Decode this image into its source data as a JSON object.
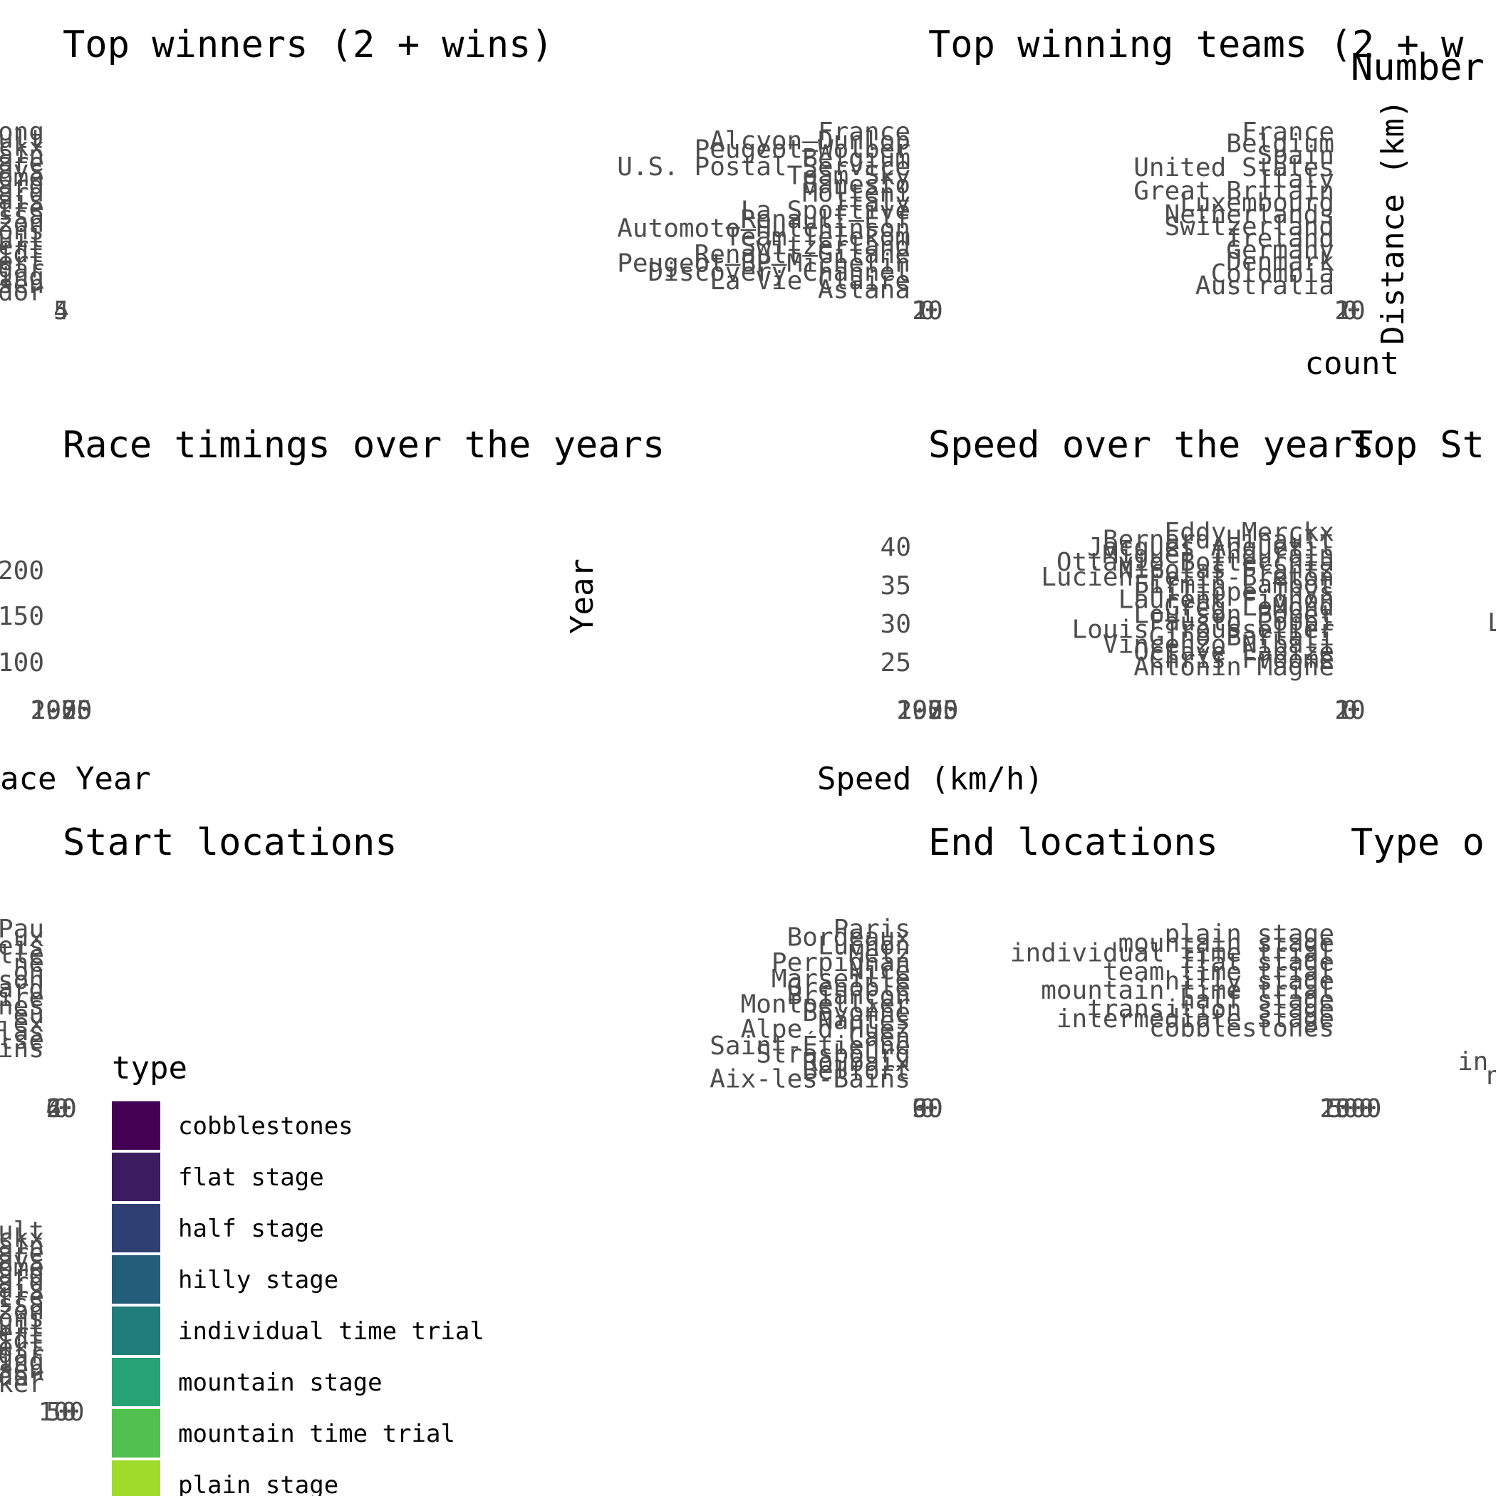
{
  "panels": [
    {
      "title": "Top winners (2 + wins)"
    },
    {
      "title": "Top winning teams (2 + w"
    },
    {
      "title": "Number"
    },
    {
      "title": "Race timings over the years"
    },
    {
      "title": "Speed over the years"
    },
    {
      "title": "Top St"
    },
    {
      "title": "Start locations"
    },
    {
      "title": "End locations"
    },
    {
      "title": "Type o"
    }
  ],
  "axis_labels": {
    "distance_km": "Distance (km)",
    "count": "count",
    "year": "Year",
    "race_year": "ace Year",
    "speed": "Speed (km/h)"
  },
  "chart_data": [
    {
      "type": "bar",
      "title": "Top winners (2 + wins)",
      "categories": [
        "ong",
        "ult",
        "ckx",
        "ain",
        "are",
        "ays",
        "ome",
        "ard",
        "ard",
        "ais",
        "tre",
        "ssa",
        "zon",
        "ons",
        "quil",
        "ert",
        "idt",
        "ert",
        "ogar",
        "ing",
        "ssen",
        "dor"
      ],
      "x_ticks": [
        "4",
        "5"
      ]
    },
    {
      "type": "bar",
      "title": "Top winning teams (2 + w",
      "categories": [
        "France",
        "Alcyon–Dunlop",
        "Peugeot–Wolber",
        "Belgium",
        "U.S. Postal Service",
        "Team Sky",
        "Banesto",
        "Molteni",
        "Italy",
        "La Sportive",
        "Renault–Elf",
        "Automoto–Hutchinson",
        "Team Telekom",
        "Switzerland",
        "Renault–Gitane",
        "Peugeot–BP–Michelin",
        "Discovery Channel",
        "La Vie Claire",
        "Astana"
      ],
      "x_ticks": [
        "0",
        "10",
        "20"
      ]
    },
    {
      "type": "bar",
      "title": "Number",
      "categories": [
        "France",
        "Belgium",
        "Spain",
        "United States",
        "Italy",
        "Great Britain",
        "Luxembourg",
        "Netherlands",
        "Switzerland",
        "Ireland",
        "Germany",
        "Denmark",
        "Colombia",
        "Australia"
      ],
      "x_ticks": [
        "0",
        "10",
        "20"
      ],
      "xlabel": "count"
    },
    {
      "type": "line",
      "title": "Race timings over the years",
      "y_ticks": [
        "100",
        "150",
        "200"
      ],
      "x_ticks": [
        "1900",
        "1925",
        "1950",
        "1975",
        "2000"
      ],
      "xlabel": "ace Year",
      "ylabel": "Year"
    },
    {
      "type": "line",
      "title": "Speed over the years",
      "y_ticks": [
        "25",
        "30",
        "35",
        "40"
      ],
      "x_ticks": [
        "1900",
        "1925",
        "1950",
        "1975",
        "2000"
      ],
      "ylabel": "Distance (km)"
    },
    {
      "type": "bar",
      "title": "Top St",
      "categories": [
        "Eddy Merckx",
        "Bernard Hinault",
        "Jacques Anquetil",
        "Miguel Induráin",
        "Ottavio Bottecchia",
        "Nicolas Frantz",
        "Lucien Petit-Breton",
        "Firmin Lambot",
        "Philippe Thys",
        "Laurent Fignon",
        "Greg LeMond",
        "Louison Bobet",
        "Fausto Coppi",
        "Louis Trousselier",
        "Gino Bartali",
        "Vincenzo Nibali",
        "Octave Lapize",
        "Chris Froome",
        "Antonin Magne"
      ],
      "x_ticks": [
        "0",
        "10",
        "20"
      ],
      "xlabel": "Speed (km/h)"
    },
    {
      "type": "bar",
      "title": "Start locations",
      "categories": [
        "Pau",
        "ux",
        "eis",
        "ille",
        "ne",
        "on",
        "son",
        "ard",
        "ire",
        "nes",
        "eu",
        "ex",
        "las",
        "lse",
        "ins"
      ],
      "x_ticks": [
        "0",
        "20",
        "40",
        "60"
      ]
    },
    {
      "type": "bar",
      "title": "End locations",
      "categories": [
        "Paris",
        "Bordeaux",
        "Luchon",
        "Metz",
        "Perpignan",
        "Nice",
        "Marseille",
        "Grenoble",
        "Briançon",
        "Montpellier",
        "Bayonne",
        "Nantes",
        "Alpe d'Huez",
        "Caen",
        "Saint-Étienne",
        "Strasbourg",
        "Roubaix",
        "Belfort",
        "Aix-les-Bains"
      ],
      "x_ticks": [
        "0",
        "30",
        "60",
        "90"
      ]
    },
    {
      "type": "bar",
      "title": "Type o",
      "categories": [
        "plain stage",
        "mountain stage",
        "individual time trial",
        "flat stage",
        "team time trial",
        "hilly stage",
        "mountain time trial",
        "half stage",
        "transition stage",
        "intermediate stage",
        "cobblestones"
      ],
      "x_ticks": [
        "0",
        "500",
        "1000",
        "1500",
        "2000"
      ],
      "fragments": [
        "L",
        "in",
        "n"
      ]
    },
    {
      "type": "bar",
      "title": "",
      "categories": [
        "ult",
        "ckx",
        "ain",
        "are",
        "ays",
        "ome",
        "ard",
        "ard",
        "ais",
        "tre",
        "ssa",
        "zon",
        "ons",
        "quil",
        "ert",
        "idt",
        "ert",
        "ogar",
        "ing",
        "ssen",
        "dor",
        "ker"
      ],
      "x_ticks": [
        "0",
        "50",
        "100"
      ]
    }
  ],
  "legend": {
    "title": "type",
    "items": [
      {
        "label": "cobblestones",
        "color": "#440154"
      },
      {
        "label": "flat stage",
        "color": "#3b1c5f"
      },
      {
        "label": "half stage",
        "color": "#2f3f74"
      },
      {
        "label": "hilly stage",
        "color": "#225d7a"
      },
      {
        "label": "individual time trial",
        "color": "#1f7c7a"
      },
      {
        "label": "mountain stage",
        "color": "#25a374"
      },
      {
        "label": "mountain time trial",
        "color": "#50c04e"
      },
      {
        "label": "plain stage",
        "color": "#a0da2b"
      }
    ]
  }
}
